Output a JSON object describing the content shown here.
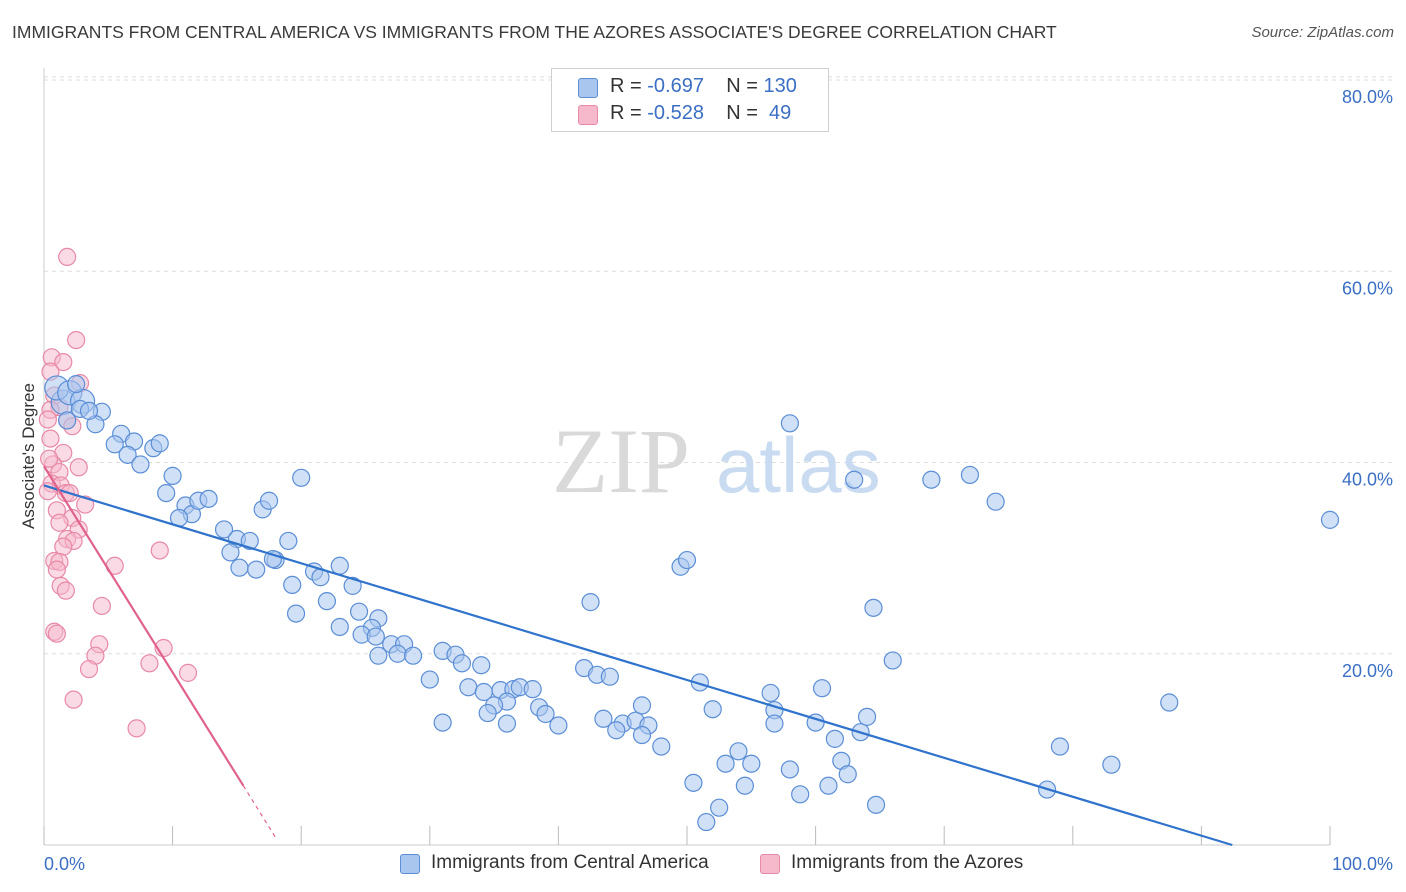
{
  "title": "IMMIGRANTS FROM CENTRAL AMERICA VS IMMIGRANTS FROM THE AZORES ASSOCIATE'S DEGREE CORRELATION CHART",
  "source": "Source: ZipAtlas.com",
  "watermark": {
    "zip": "ZIP",
    "atlas": "atlas"
  },
  "legend_top": [
    {
      "r_label": "R = ",
      "r_value": "-0.697",
      "n_label": "N = ",
      "n_value": "130"
    },
    {
      "r_label": "R = ",
      "r_value": "-0.528",
      "n_label": "N = ",
      "n_value": " 49"
    }
  ],
  "colors": {
    "blue_fill": "#a9c6ef",
    "blue_stroke": "#5b8ed6",
    "blue_line": "#2f73cc",
    "pink_fill": "#f6b8cb",
    "pink_stroke": "#e889a6",
    "pink_line": "#e0628c",
    "axis_label": "#3b6fc4",
    "grid": "#dddddd"
  },
  "chart_data": {
    "type": "scatter",
    "ylabel": "Associate's Degree",
    "x_tick_labels": [
      "0.0%",
      "100.0%"
    ],
    "y_tick_labels": [
      "20.0%",
      "40.0%",
      "60.0%",
      "80.0%"
    ],
    "y_ticks": [
      20,
      40,
      60,
      80
    ],
    "xlim": [
      0,
      100
    ],
    "ylim": [
      0,
      80
    ],
    "grid": true,
    "legend_position": "bottom",
    "series": [
      {
        "name": "Immigrants from Central America",
        "color": "#a9c6ef",
        "trend": {
          "x1": 0,
          "y1": 37.6,
          "x2": 92.4,
          "y2": 0
        },
        "points": [
          [
            1.5,
            46.3
          ],
          [
            1.0,
            47.8
          ],
          [
            2.0,
            47.3
          ],
          [
            3.0,
            46.4
          ],
          [
            2.5,
            48.2
          ],
          [
            1.8,
            44.4
          ],
          [
            4.5,
            45.3
          ],
          [
            2.8,
            45.6
          ],
          [
            4.0,
            44.0
          ],
          [
            3.5,
            45.4
          ],
          [
            6.0,
            43.0
          ],
          [
            7.0,
            42.2
          ],
          [
            5.5,
            41.9
          ],
          [
            8.5,
            41.5
          ],
          [
            9.0,
            42.0
          ],
          [
            6.5,
            40.8
          ],
          [
            7.5,
            39.8
          ],
          [
            10.0,
            38.6
          ],
          [
            9.5,
            36.8
          ],
          [
            11.0,
            35.5
          ],
          [
            11.5,
            34.6
          ],
          [
            12.0,
            36.0
          ],
          [
            12.8,
            36.2
          ],
          [
            10.5,
            34.2
          ],
          [
            14.0,
            33.0
          ],
          [
            17.0,
            35.1
          ],
          [
            17.5,
            36.0
          ],
          [
            20.0,
            38.4
          ],
          [
            15.0,
            32.0
          ],
          [
            16.0,
            31.8
          ],
          [
            14.5,
            30.6
          ],
          [
            18.0,
            29.8
          ],
          [
            17.8,
            29.9
          ],
          [
            15.2,
            29.0
          ],
          [
            16.5,
            28.8
          ],
          [
            19.0,
            31.8
          ],
          [
            21.0,
            28.6
          ],
          [
            21.5,
            28.0
          ],
          [
            23.0,
            29.2
          ],
          [
            19.3,
            27.2
          ],
          [
            24.0,
            27.1
          ],
          [
            22.0,
            25.5
          ],
          [
            19.6,
            24.2
          ],
          [
            24.5,
            24.4
          ],
          [
            26.0,
            23.7
          ],
          [
            23.0,
            22.8
          ],
          [
            25.5,
            22.7
          ],
          [
            24.7,
            22.0
          ],
          [
            25.8,
            21.8
          ],
          [
            27.0,
            21.0
          ],
          [
            28.0,
            21.0
          ],
          [
            27.5,
            20.0
          ],
          [
            28.7,
            19.8
          ],
          [
            26.0,
            19.8
          ],
          [
            31.0,
            20.3
          ],
          [
            32.0,
            19.9
          ],
          [
            32.5,
            19.0
          ],
          [
            30.0,
            17.3
          ],
          [
            34.0,
            18.8
          ],
          [
            33.0,
            16.5
          ],
          [
            34.2,
            16.0
          ],
          [
            35.5,
            16.2
          ],
          [
            36.5,
            16.3
          ],
          [
            37.0,
            16.5
          ],
          [
            38.0,
            16.3
          ],
          [
            36.0,
            15.0
          ],
          [
            35.0,
            14.6
          ],
          [
            38.5,
            14.4
          ],
          [
            34.5,
            13.8
          ],
          [
            39.0,
            13.7
          ],
          [
            31.0,
            12.8
          ],
          [
            36.0,
            12.7
          ],
          [
            40.0,
            12.5
          ],
          [
            42.0,
            18.5
          ],
          [
            43.0,
            17.8
          ],
          [
            44.0,
            17.6
          ],
          [
            43.5,
            13.2
          ],
          [
            45.0,
            12.7
          ],
          [
            46.0,
            13.0
          ],
          [
            47.0,
            12.5
          ],
          [
            46.5,
            14.6
          ],
          [
            44.5,
            12.0
          ],
          [
            46.5,
            11.5
          ],
          [
            48.0,
            10.3
          ],
          [
            42.5,
            25.4
          ],
          [
            49.5,
            29.1
          ],
          [
            50.0,
            29.8
          ],
          [
            51.0,
            17.0
          ],
          [
            52.0,
            14.2
          ],
          [
            53.0,
            8.5
          ],
          [
            54.0,
            9.8
          ],
          [
            52.5,
            3.9
          ],
          [
            51.5,
            2.4
          ],
          [
            50.5,
            6.5
          ],
          [
            54.5,
            6.2
          ],
          [
            55.0,
            8.5
          ],
          [
            56.5,
            15.9
          ],
          [
            56.8,
            14.1
          ],
          [
            56.8,
            12.7
          ],
          [
            58.0,
            7.9
          ],
          [
            58.8,
            5.3
          ],
          [
            58.0,
            44.1
          ],
          [
            60.5,
            16.4
          ],
          [
            60.0,
            12.8
          ],
          [
            61.5,
            11.1
          ],
          [
            61.0,
            6.2
          ],
          [
            62.0,
            8.8
          ],
          [
            62.5,
            7.4
          ],
          [
            63.5,
            11.8
          ],
          [
            64.0,
            13.4
          ],
          [
            64.5,
            24.8
          ],
          [
            64.7,
            4.2
          ],
          [
            66.0,
            19.3
          ],
          [
            69.0,
            38.2
          ],
          [
            63.0,
            38.2
          ],
          [
            72.0,
            38.7
          ],
          [
            74.0,
            35.9
          ],
          [
            78.0,
            5.8
          ],
          [
            79.0,
            10.3
          ],
          [
            83.0,
            8.4
          ],
          [
            87.5,
            14.9
          ],
          [
            100.0,
            34.0
          ]
        ]
      },
      {
        "name": "Immigrants from the Azores",
        "color": "#f6b8cb",
        "trend": {
          "x1": 0,
          "y1": 39.6,
          "x2": 15.5,
          "y2": 6.2,
          "dash_to_x": 18.0,
          "dash_to_y": 0.8
        },
        "points": [
          [
            1.8,
            61.5
          ],
          [
            0.6,
            51.0
          ],
          [
            1.5,
            50.5
          ],
          [
            2.5,
            52.8
          ],
          [
            0.5,
            49.5
          ],
          [
            2.8,
            48.3
          ],
          [
            0.8,
            47.0
          ],
          [
            1.2,
            45.8
          ],
          [
            0.5,
            45.5
          ],
          [
            1.8,
            44.4
          ],
          [
            2.2,
            43.8
          ],
          [
            0.3,
            44.5
          ],
          [
            0.5,
            42.5
          ],
          [
            1.5,
            41.0
          ],
          [
            0.7,
            39.8
          ],
          [
            1.2,
            39.0
          ],
          [
            2.7,
            39.5
          ],
          [
            0.6,
            37.8
          ],
          [
            1.3,
            37.6
          ],
          [
            1.7,
            36.8
          ],
          [
            1.0,
            35.0
          ],
          [
            2.2,
            34.2
          ],
          [
            1.2,
            33.7
          ],
          [
            2.7,
            33.0
          ],
          [
            1.8,
            32.0
          ],
          [
            2.3,
            31.8
          ],
          [
            1.5,
            31.2
          ],
          [
            9.0,
            30.8
          ],
          [
            0.8,
            29.7
          ],
          [
            1.2,
            29.6
          ],
          [
            5.5,
            29.2
          ],
          [
            1.0,
            28.8
          ],
          [
            1.3,
            27.1
          ],
          [
            1.7,
            26.6
          ],
          [
            4.5,
            25.0
          ],
          [
            0.8,
            22.3
          ],
          [
            1.0,
            22.1
          ],
          [
            4.3,
            21.0
          ],
          [
            9.3,
            20.6
          ],
          [
            4.0,
            19.8
          ],
          [
            8.2,
            19.0
          ],
          [
            3.5,
            18.4
          ],
          [
            11.2,
            18.0
          ],
          [
            2.3,
            15.2
          ],
          [
            7.2,
            12.2
          ],
          [
            0.3,
            37.0
          ],
          [
            0.4,
            40.4
          ],
          [
            2.0,
            36.8
          ],
          [
            3.2,
            35.6
          ]
        ]
      }
    ]
  }
}
